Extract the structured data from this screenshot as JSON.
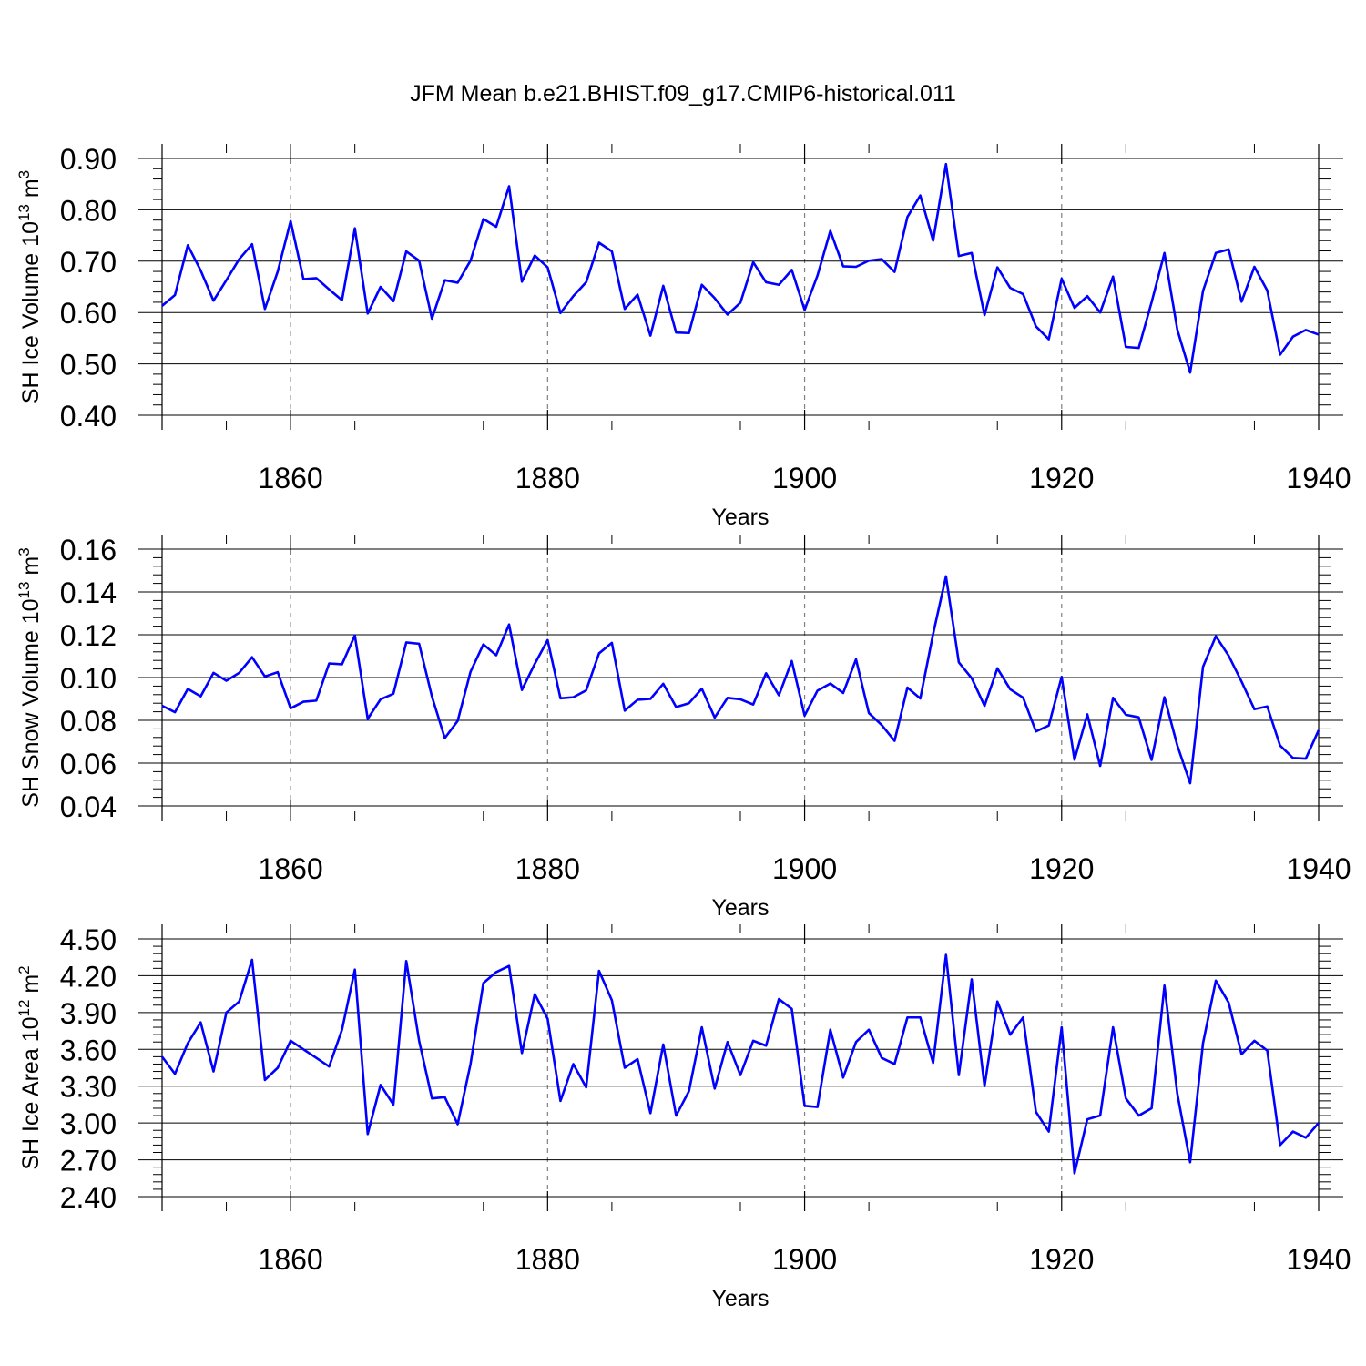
{
  "figure": {
    "title": "JFM Mean b.e21.BHIST.f09_g17.CMIP6-historical.011"
  },
  "style": {
    "line_color": "#0000ff",
    "axis_color": "#000000",
    "grid_color": "#808080"
  },
  "chart_data": [
    {
      "type": "line",
      "ylabel": "SH Ice Volume 10",
      "ylabel_exp": "13",
      "ylabel_unit": " m",
      "ylabel_unit_exp": "3",
      "xlabel": "Years",
      "xlim": [
        1850,
        1940
      ],
      "ylim": [
        0.4,
        0.9
      ],
      "xticks": [
        1860,
        1880,
        1900,
        1920,
        1940
      ],
      "yticks": [
        0.4,
        0.5,
        0.6,
        0.7,
        0.8,
        0.9
      ],
      "ytick_labels": [
        "0.40",
        "0.50",
        "0.60",
        "0.70",
        "0.80",
        "0.90"
      ],
      "grid": "vertical dashed at major x ticks",
      "x_start": 1850,
      "series": [
        {
          "values": [
            0.613,
            0.634,
            0.731,
            0.682,
            0.623,
            0.663,
            0.704,
            0.733,
            0.607,
            0.68,
            0.778,
            0.665,
            0.667,
            0.645,
            0.624,
            0.764,
            0.598,
            0.65,
            0.622,
            0.719,
            0.701,
            0.588,
            0.663,
            0.658,
            0.701,
            0.782,
            0.767,
            0.846,
            0.66,
            0.711,
            0.688,
            0.599,
            0.632,
            0.659,
            0.736,
            0.719,
            0.607,
            0.635,
            0.555,
            0.652,
            0.561,
            0.56,
            0.654,
            0.628,
            0.596,
            0.619,
            0.698,
            0.659,
            0.654,
            0.683,
            0.605,
            0.672,
            0.759,
            0.69,
            0.689,
            0.701,
            0.704,
            0.679,
            0.786,
            0.828,
            0.74,
            0.889,
            0.71,
            0.716,
            0.595,
            0.688,
            0.648,
            0.636,
            0.573,
            0.548,
            0.666,
            0.609,
            0.632,
            0.6,
            0.67,
            0.533,
            0.531,
            0.62,
            0.716,
            0.567,
            0.483,
            0.642,
            0.716,
            0.723,
            0.621,
            0.689,
            0.643,
            0.518,
            0.553,
            0.566,
            0.557
          ]
        }
      ]
    },
    {
      "type": "line",
      "ylabel": "SH Snow Volume 10",
      "ylabel_exp": "13",
      "ylabel_unit": " m",
      "ylabel_unit_exp": "3",
      "xlabel": "Years",
      "xlim": [
        1850,
        1940
      ],
      "ylim": [
        0.04,
        0.16
      ],
      "xticks": [
        1860,
        1880,
        1900,
        1920,
        1940
      ],
      "yticks": [
        0.04,
        0.06,
        0.08,
        0.1,
        0.12,
        0.14,
        0.16
      ],
      "ytick_labels": [
        "0.04",
        "0.06",
        "0.08",
        "0.10",
        "0.12",
        "0.14",
        "0.16"
      ],
      "grid": "vertical dashed at major x ticks",
      "x_start": 1850,
      "series": [
        {
          "values": [
            0.0868,
            0.0838,
            0.0947,
            0.0912,
            0.1022,
            0.0985,
            0.1022,
            0.1095,
            0.1005,
            0.1025,
            0.0856,
            0.0887,
            0.0892,
            0.1066,
            0.1062,
            0.1197,
            0.0807,
            0.0898,
            0.0924,
            0.1164,
            0.1158,
            0.0911,
            0.0717,
            0.0797,
            0.1027,
            0.1155,
            0.1104,
            0.1248,
            0.0942,
            0.1064,
            0.1175,
            0.0903,
            0.0908,
            0.094,
            0.1113,
            0.1162,
            0.0845,
            0.0896,
            0.09,
            0.0971,
            0.0862,
            0.088,
            0.0948,
            0.0813,
            0.0905,
            0.0898,
            0.0874,
            0.102,
            0.0917,
            0.1077,
            0.0822,
            0.0939,
            0.0972,
            0.0928,
            0.1085,
            0.0834,
            0.0778,
            0.0704,
            0.0953,
            0.0902,
            0.1204,
            0.1473,
            0.1071,
            0.0997,
            0.0868,
            0.1043,
            0.0945,
            0.0906,
            0.0748,
            0.0776,
            0.1003,
            0.0616,
            0.0828,
            0.0587,
            0.0905,
            0.0826,
            0.0814,
            0.0615,
            0.0908,
            0.0683,
            0.0506,
            0.105,
            0.1193,
            0.1102,
            0.0981,
            0.0852,
            0.0865,
            0.0682,
            0.0624,
            0.0621,
            0.0754
          ]
        }
      ]
    },
    {
      "type": "line",
      "ylabel": "SH Ice Area 10",
      "ylabel_exp": "12",
      "ylabel_unit": " m",
      "ylabel_unit_exp": "2",
      "xlabel": "Years",
      "xlim": [
        1850,
        1940
      ],
      "ylim": [
        2.4,
        4.5
      ],
      "xticks": [
        1860,
        1880,
        1900,
        1920,
        1940
      ],
      "yticks": [
        2.4,
        2.7,
        3.0,
        3.3,
        3.6,
        3.9,
        4.2,
        4.5
      ],
      "ytick_labels": [
        "2.40",
        "2.70",
        "3.00",
        "3.30",
        "3.60",
        "3.90",
        "4.20",
        "4.50"
      ],
      "grid": "vertical dashed at major x ticks",
      "x_start": 1850,
      "series": [
        {
          "values": [
            3.54,
            3.4,
            3.65,
            3.82,
            3.42,
            3.9,
            3.99,
            4.33,
            3.35,
            3.45,
            3.67,
            3.6,
            3.53,
            3.46,
            3.76,
            4.25,
            2.91,
            3.31,
            3.15,
            4.32,
            3.67,
            3.2,
            3.21,
            2.99,
            3.48,
            4.14,
            4.23,
            4.28,
            3.57,
            4.05,
            3.85,
            3.18,
            3.48,
            3.29,
            4.24,
            4.0,
            3.45,
            3.52,
            3.08,
            3.64,
            3.06,
            3.26,
            3.78,
            3.28,
            3.66,
            3.39,
            3.67,
            3.63,
            4.01,
            3.93,
            3.14,
            3.13,
            3.76,
            3.37,
            3.66,
            3.76,
            3.53,
            3.48,
            3.86,
            3.86,
            3.49,
            4.37,
            3.39,
            4.17,
            3.3,
            3.99,
            3.72,
            3.86,
            3.09,
            2.93,
            3.78,
            2.59,
            3.03,
            3.06,
            3.78,
            3.2,
            3.06,
            3.12,
            4.12,
            3.24,
            2.68,
            3.65,
            4.16,
            3.98,
            3.56,
            3.67,
            3.59,
            2.82,
            2.93,
            2.88,
            3.0
          ]
        }
      ]
    }
  ]
}
